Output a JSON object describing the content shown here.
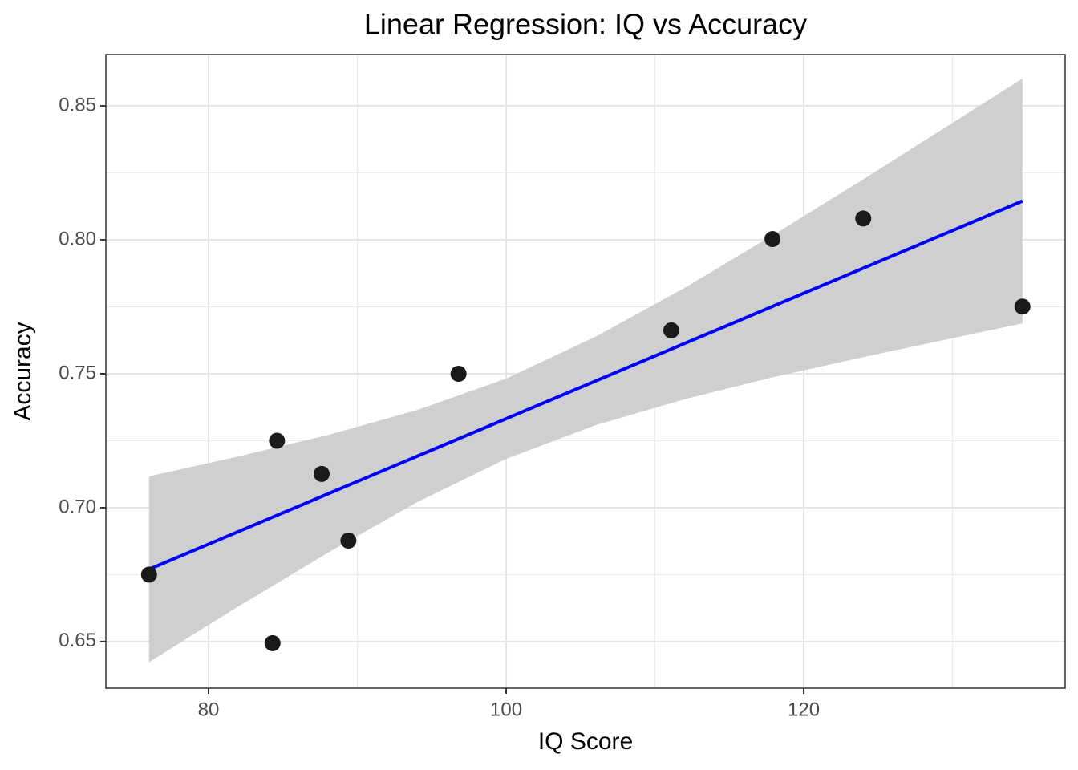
{
  "chart_data": {
    "type": "scatter",
    "title": "Linear Regression: IQ vs Accuracy",
    "x_label": "IQ Score",
    "y_label": "Accuracy",
    "x": [
      76,
      84.3,
      84.6,
      87.6,
      89.4,
      96.8,
      111.1,
      117.9,
      124,
      134.7
    ],
    "values": [
      0.675,
      0.6494,
      0.725,
      0.7126,
      0.6877,
      0.75,
      0.7662,
      0.8003,
      0.808,
      0.7751
    ],
    "color": "#1a1a1a",
    "fit": {
      "x": [
        76,
        134.7
      ],
      "values": [
        0.677,
        0.8145
      ],
      "color": "#0000ff"
    },
    "band": {
      "x": [
        76,
        82,
        88,
        94,
        100,
        106,
        112,
        118,
        124,
        130,
        134.7
      ],
      "lower": [
        0.6423,
        0.6631,
        0.6831,
        0.702,
        0.7182,
        0.7308,
        0.7405,
        0.7488,
        0.7562,
        0.7633,
        0.7688
      ],
      "upper": [
        0.7117,
        0.7191,
        0.7271,
        0.7364,
        0.7482,
        0.7638,
        0.7821,
        0.802,
        0.8226,
        0.8437,
        0.8602
      ],
      "color": "#cfcfcf"
    },
    "xlim": [
      73.1,
      137.57
    ],
    "ylim": [
      0.6326,
      0.8692
    ],
    "xticks": [
      80,
      100,
      120
    ],
    "yticks": [
      0.65,
      {
        "value": 0.7,
        "label": "0.70"
      },
      0.75,
      {
        "value": 0.8,
        "label": "0.80"
      },
      0.85
    ],
    "x_minor_ticks": [
      90,
      110,
      130
    ],
    "y_minor_ticks": [
      0.675,
      0.725,
      0.775,
      0.825
    ],
    "grid": true
  }
}
